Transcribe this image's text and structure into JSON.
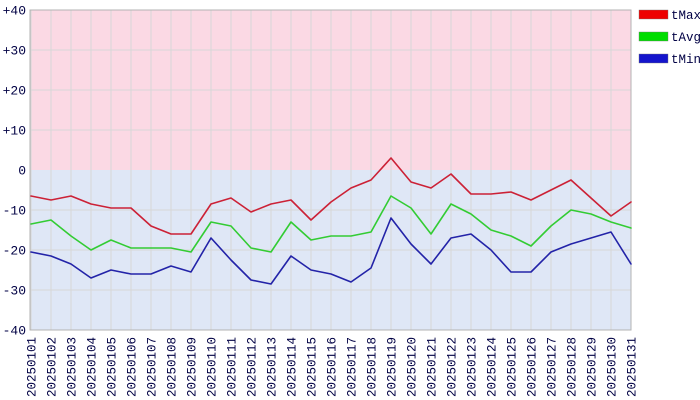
{
  "chart_data": {
    "type": "line",
    "title": "",
    "xlabel": "",
    "ylabel": "",
    "categories": [
      "20250101",
      "20250102",
      "20250103",
      "20250104",
      "20250105",
      "20250106",
      "20250107",
      "20250108",
      "20250109",
      "20250110",
      "20250111",
      "20250112",
      "20250113",
      "20250114",
      "20250115",
      "20250116",
      "20250117",
      "20250118",
      "20250119",
      "20250120",
      "20250121",
      "20250122",
      "20250123",
      "20250124",
      "20250125",
      "20250126",
      "20250127",
      "20250128",
      "20250129",
      "20250130",
      "20250131"
    ],
    "series": [
      {
        "name": "tMax",
        "legend_color": "#ee0000",
        "line_color": "#cc2136",
        "values": [
          -6.5,
          -7.5,
          -6.5,
          -8.5,
          -9.5,
          -9.5,
          -14,
          -16,
          -16,
          -8.5,
          -7,
          -10.5,
          -8.5,
          -7.5,
          -12.5,
          -8,
          -4.5,
          -2.5,
          3,
          -3,
          -4.5,
          -1,
          -6,
          -6,
          -5.5,
          -7.5,
          -5,
          -2.5,
          -7,
          -11.5,
          -8
        ]
      },
      {
        "name": "tAvg",
        "legend_color": "#00dd00",
        "line_color": "#33cc33",
        "values": [
          -13.5,
          -12.5,
          -16.5,
          -20,
          -17.5,
          -19.5,
          -19.5,
          -19.5,
          -20.5,
          -13,
          -14,
          -19.5,
          -20.5,
          -13,
          -17.5,
          -16.5,
          -16.5,
          -15.5,
          -6.5,
          -9.5,
          -16,
          -8.5,
          -11,
          -15,
          -16.5,
          -19,
          -14,
          -10,
          -11,
          -13,
          -14.5
        ]
      },
      {
        "name": "tMin",
        "legend_color": "#1414cc",
        "line_color": "#2323a8",
        "values": [
          -20.5,
          -21.5,
          -23.5,
          -27,
          -25,
          -26,
          -26,
          -24,
          -25.5,
          -17,
          -22.5,
          -27.5,
          -28.5,
          -21.5,
          -25,
          -26,
          -28,
          -24.5,
          -12,
          -18.5,
          -23.5,
          -17,
          -16,
          -20,
          -25.5,
          -25.5,
          -20.5,
          -18.5,
          -17,
          -15.5,
          -23.5
        ]
      }
    ],
    "ylim": [
      -40,
      40
    ],
    "ytick_step": 10,
    "ytick_labels": [
      "+40",
      "+30",
      "+20",
      "+10",
      "0",
      "-10",
      "-20",
      "-30",
      "-40"
    ],
    "grid": true,
    "legend_position": "top-right",
    "zones": [
      {
        "name": "above-zero-zone",
        "from": 0,
        "to": 40,
        "color": "#fbd9e4"
      },
      {
        "name": "below-zero-zone",
        "from": -40,
        "to": 0,
        "color": "#dfe7f6"
      }
    ],
    "axis_text_color": "#000044",
    "grid_color": "#d7d7d7",
    "border_color": "#b3b3b3"
  }
}
